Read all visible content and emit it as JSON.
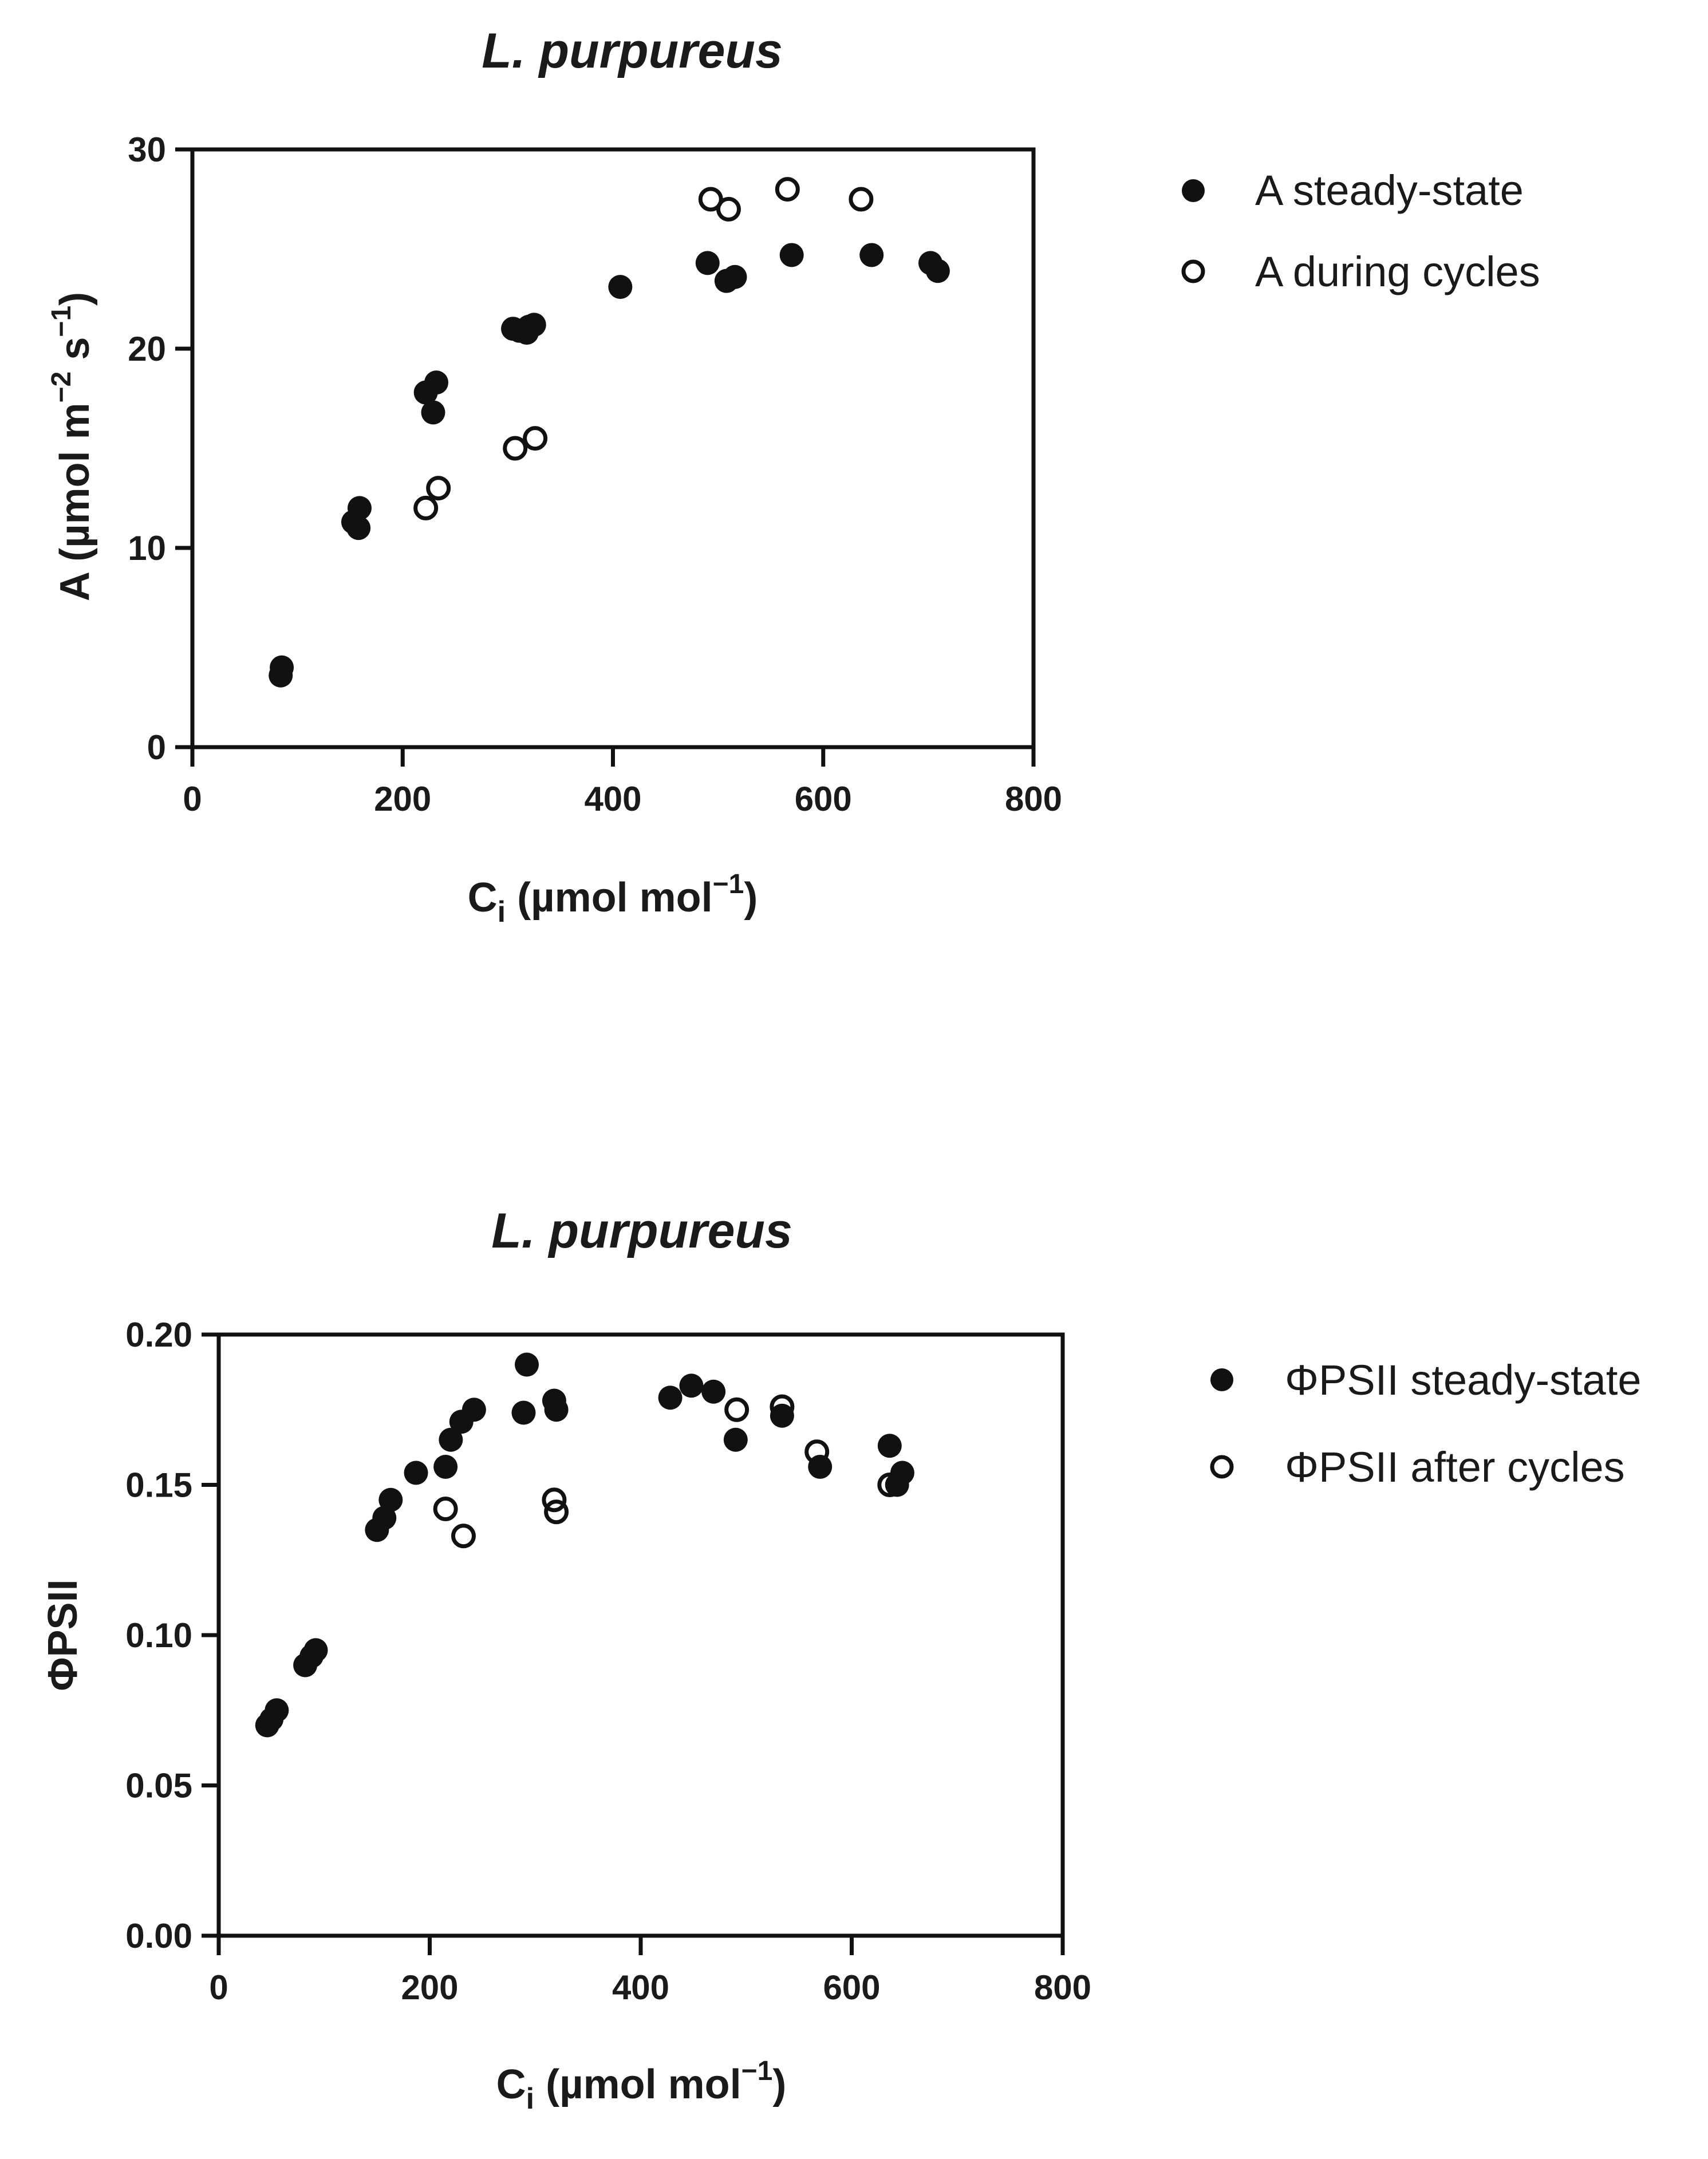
{
  "chart_data": [
    {
      "type": "scatter",
      "title": "L. purpureus",
      "xlabel": "Ci (µmol mol⁻¹)",
      "xlabel_main": "C",
      "xlabel_sub": "i",
      "xlabel_rest": " (µmol mol",
      "xlabel_sup": "−1",
      "xlabel_close": ")",
      "ylabel": "A (µmol m−2 s−1)",
      "ylabel_part1": "A (µmol m",
      "ylabel_sup1": "−2",
      "ylabel_part2": " s",
      "ylabel_sup2": "−1",
      "ylabel_close": ")",
      "xlim": [
        0,
        800
      ],
      "ylim": [
        0,
        30
      ],
      "xticks": [
        0,
        200,
        400,
        600,
        800
      ],
      "xtick_labels": [
        "0",
        "200",
        "400",
        "600",
        "800"
      ],
      "yticks": [
        0,
        10,
        20,
        30
      ],
      "ytick_labels": [
        "0",
        "10",
        "20",
        "30"
      ],
      "legend_position": "right",
      "series": [
        {
          "name": "A steady-state",
          "marker": "filled-circle",
          "points": [
            [
              84,
              3.6
            ],
            [
              85,
              4.0
            ],
            [
              153,
              11.3
            ],
            [
              158,
              11.0
            ],
            [
              159,
              12.0
            ],
            [
              222,
              17.8
            ],
            [
              229,
              16.8
            ],
            [
              232,
              18.3
            ],
            [
              305,
              21.0
            ],
            [
              311,
              20.9
            ],
            [
              318,
              20.8
            ],
            [
              320,
              21.1
            ],
            [
              325,
              21.2
            ],
            [
              407,
              23.1
            ],
            [
              490,
              24.3
            ],
            [
              508,
              23.4
            ],
            [
              516,
              23.6
            ],
            [
              570,
              24.7
            ],
            [
              646,
              24.7
            ],
            [
              702,
              24.3
            ],
            [
              709,
              23.9
            ]
          ]
        },
        {
          "name": "A during cycles",
          "marker": "open-circle",
          "points": [
            [
              222,
              12.0
            ],
            [
              234,
              13.0
            ],
            [
              307,
              15.0
            ],
            [
              326,
              15.5
            ],
            [
              493,
              27.5
            ],
            [
              510,
              27.0
            ],
            [
              566,
              28.0
            ],
            [
              636,
              27.5
            ]
          ]
        }
      ]
    },
    {
      "type": "scatter",
      "title": "L. purpureus",
      "xlabel": "Ci (µmol mol⁻¹)",
      "xlabel_main": "C",
      "xlabel_sub": "i",
      "xlabel_rest": " (µmol mol",
      "xlabel_sup": "−1",
      "xlabel_close": ")",
      "ylabel": "ΦPSII",
      "xlim": [
        0,
        800
      ],
      "ylim": [
        0.0,
        0.2
      ],
      "xticks": [
        0,
        200,
        400,
        600,
        800
      ],
      "xtick_labels": [
        "0",
        "200",
        "400",
        "600",
        "800"
      ],
      "yticks": [
        0.0,
        0.05,
        0.1,
        0.15,
        0.2
      ],
      "ytick_labels": [
        "0.00",
        "0.05",
        "0.10",
        "0.15",
        "0.20"
      ],
      "legend_position": "right",
      "series": [
        {
          "name": "ΦPSII steady-state",
          "marker": "filled-circle",
          "points": [
            [
              46,
              0.07
            ],
            [
              50,
              0.072
            ],
            [
              55,
              0.075
            ],
            [
              82,
              0.09
            ],
            [
              88,
              0.093
            ],
            [
              92,
              0.095
            ],
            [
              150,
              0.135
            ],
            [
              157,
              0.139
            ],
            [
              163,
              0.145
            ],
            [
              187,
              0.154
            ],
            [
              215,
              0.156
            ],
            [
              220,
              0.165
            ],
            [
              230,
              0.171
            ],
            [
              242,
              0.175
            ],
            [
              289,
              0.174
            ],
            [
              292,
              0.19
            ],
            [
              318,
              0.178
            ],
            [
              320,
              0.175
            ],
            [
              428,
              0.179
            ],
            [
              448,
              0.183
            ],
            [
              469,
              0.181
            ],
            [
              490,
              0.165
            ],
            [
              534,
              0.173
            ],
            [
              570,
              0.156
            ],
            [
              636,
              0.163
            ],
            [
              643,
              0.15
            ],
            [
              648,
              0.154
            ]
          ]
        },
        {
          "name": "ΦPSII after cycles",
          "marker": "open-circle",
          "points": [
            [
              215,
              0.142
            ],
            [
              232,
              0.133
            ],
            [
              318,
              0.145
            ],
            [
              320,
              0.141
            ],
            [
              491,
              0.175
            ],
            [
              534,
              0.176
            ],
            [
              567,
              0.161
            ],
            [
              636,
              0.15
            ]
          ]
        }
      ]
    }
  ]
}
